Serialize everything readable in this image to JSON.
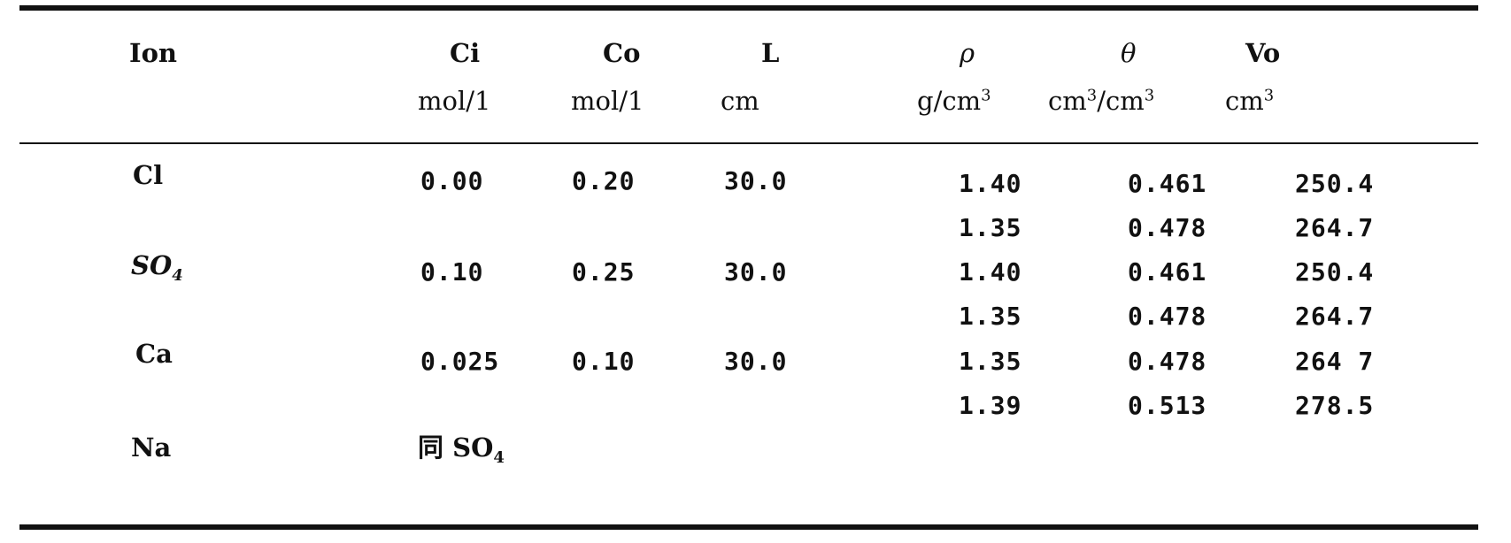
{
  "table": {
    "headers": {
      "ion": "Ion",
      "ci": "Ci",
      "co": "Co",
      "l": "L",
      "rho": "ρ",
      "theta": "θ",
      "vo": "Vo"
    },
    "units": {
      "ci": "mol/1",
      "co": "mol/1",
      "l": "cm",
      "rho_base": "g/cm",
      "rho_exp": "3",
      "theta_a": "cm",
      "theta_a_exp": "3",
      "theta_slash": "/cm",
      "theta_b_exp": "3",
      "vo_base": "cm",
      "vo_exp": "3"
    },
    "ions": {
      "cl": "Cl",
      "so4_base": "SO",
      "so4_sub": "4",
      "ca": "Ca",
      "na": "Na"
    },
    "rows": [
      {
        "ci": "0.00",
        "co": "0.20",
        "l": "30.0",
        "rho": "1.40",
        "theta": "0.461",
        "vo": "250.4"
      },
      {
        "ci": "",
        "co": "",
        "l": "",
        "rho": "1.35",
        "theta": "0.478",
        "vo": "264.7"
      },
      {
        "ci": "0.10",
        "co": "0.25",
        "l": "30.0",
        "rho": "1.40",
        "theta": "0.461",
        "vo": "250.4"
      },
      {
        "ci": "",
        "co": "",
        "l": "",
        "rho": "1.35",
        "theta": "0.478",
        "vo": "264.7"
      },
      {
        "ci": "0.025",
        "co": "0.10",
        "l": "30.0",
        "rho": "1.35",
        "theta": "0.478",
        "vo": "264 7"
      },
      {
        "ci": "",
        "co": "",
        "l": "",
        "rho": "1.39",
        "theta": "0.513",
        "vo": "278.5"
      }
    ],
    "na_note_prefix": "同",
    "na_note_base": "SO",
    "na_note_sub": "4"
  }
}
